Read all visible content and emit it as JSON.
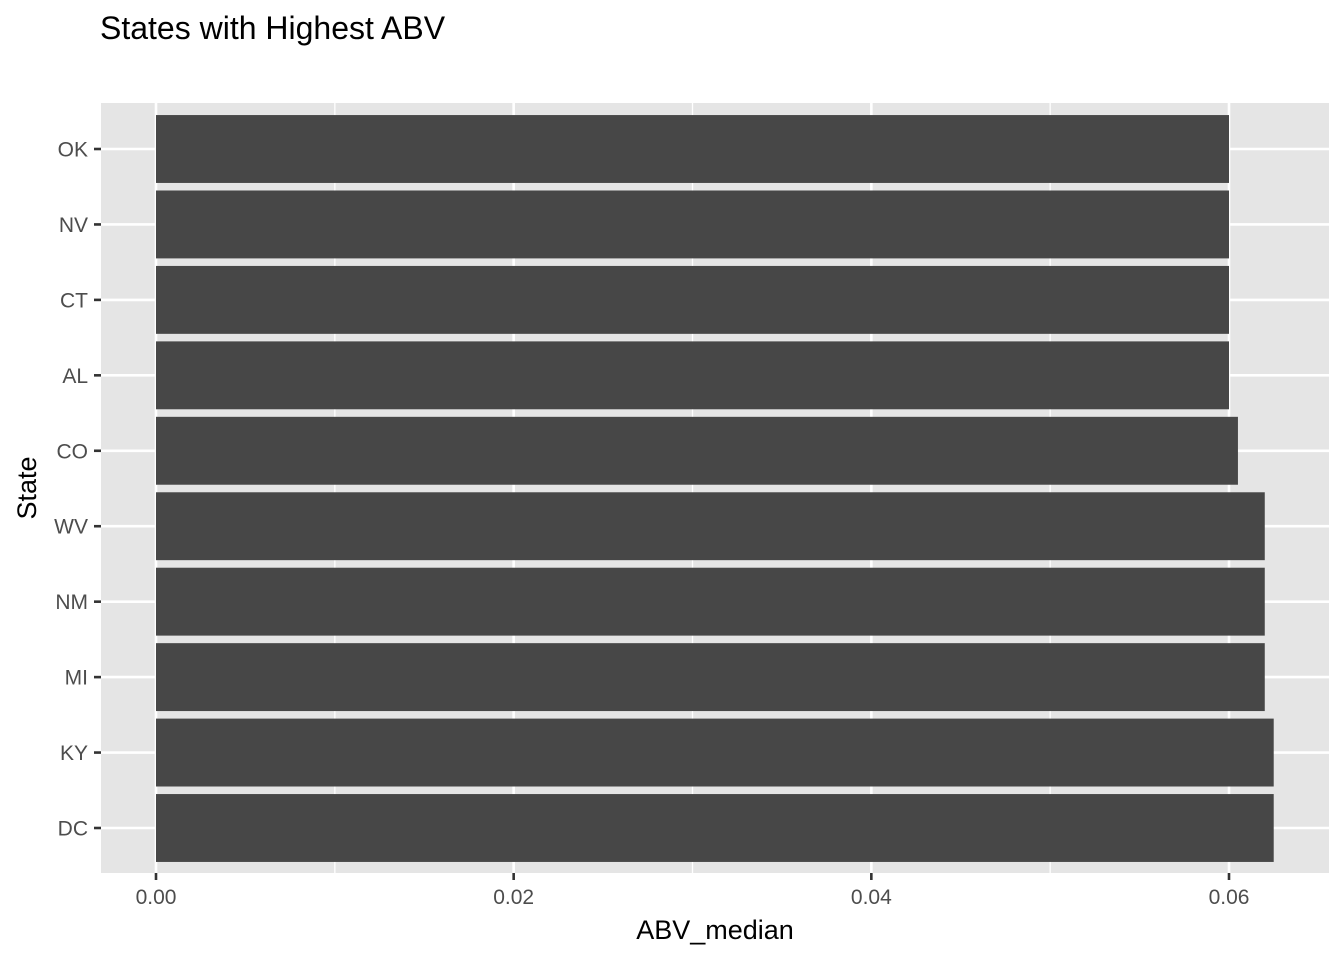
{
  "chart_data": {
    "type": "bar",
    "orientation": "horizontal",
    "title": "States with Highest ABV",
    "xlabel": "ABV_median",
    "ylabel": "State",
    "categories": [
      "OK",
      "NV",
      "CT",
      "AL",
      "CO",
      "WV",
      "NM",
      "MI",
      "KY",
      "DC"
    ],
    "values": [
      0.06,
      0.06,
      0.06,
      0.06,
      0.0605,
      0.062,
      0.062,
      0.062,
      0.0625,
      0.0625
    ],
    "xlim": [
      0,
      0.065
    ],
    "xticks": [
      "0.00",
      "0.02",
      "0.04",
      "0.06"
    ],
    "grid": true,
    "colors": {
      "panel_background": "#e5e5e5",
      "grid_major": "#ffffff",
      "bar_fill": "#474747",
      "tick_text": "#4d4d4d",
      "tick_mark": "#333333"
    }
  }
}
